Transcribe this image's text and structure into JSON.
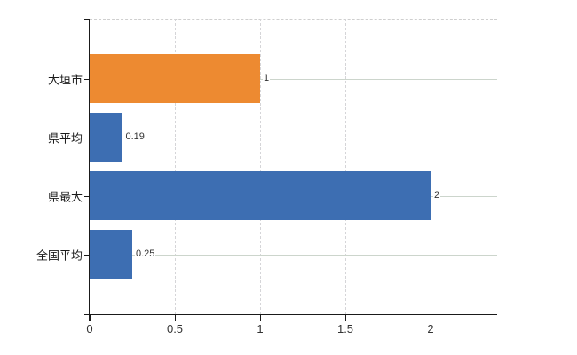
{
  "chart_data": {
    "type": "bar",
    "orientation": "horizontal",
    "categories": [
      "大垣市",
      "県平均",
      "県最大",
      "全国平均"
    ],
    "values": [
      1,
      0.19,
      2,
      0.25
    ],
    "value_labels": [
      "1",
      "0.19",
      "2",
      "0.25"
    ],
    "bar_colors": [
      "#ed8a31",
      "#3d6eb2",
      "#3d6eb2",
      "#3d6eb2"
    ],
    "x_ticks": [
      0,
      0.5,
      1,
      1.5,
      2
    ],
    "x_tick_labels": [
      "0",
      "0.5",
      "1",
      "1.5",
      "2"
    ],
    "xlim": [
      0,
      2.39
    ],
    "grid": "on",
    "legend": "none"
  },
  "colors": {
    "bar_orange": "#ed8a31",
    "bar_blue": "#3d6eb2",
    "h_gridline": "#ccd5cc",
    "v_gridline": "#d5d5d8",
    "top_border": "#cfcfcf",
    "axis": "#1a1a1a",
    "text": "#333333"
  }
}
